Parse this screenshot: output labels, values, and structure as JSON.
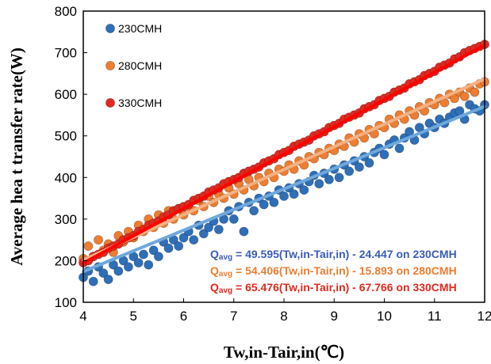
{
  "chart_data": {
    "type": "scatter",
    "xlabel": "Tw,in-Tair,in(℃)",
    "ylabel": "Average hea t transfer rate(W)",
    "xlim": [
      4,
      12
    ],
    "ylim": [
      100,
      800
    ],
    "xticks": [
      "4",
      "5",
      "6",
      "7",
      "8",
      "9",
      "10",
      "11",
      "12"
    ],
    "yticks": [
      "100",
      "200",
      "300",
      "400",
      "500",
      "600",
      "700",
      "800"
    ],
    "grid": false,
    "legend_position": "top-left",
    "series": [
      {
        "name": "230CMH",
        "color": "#2e6fb7",
        "trend_color": "#6fa8dc",
        "fit": {
          "slope": 49.595,
          "intercept": -24.447
        },
        "points": [
          [
            4.0,
            160
          ],
          [
            4.1,
            175
          ],
          [
            4.2,
            150
          ],
          [
            4.3,
            185
          ],
          [
            4.4,
            170
          ],
          [
            4.5,
            155
          ],
          [
            4.6,
            190
          ],
          [
            4.7,
            175
          ],
          [
            4.8,
            200
          ],
          [
            4.9,
            185
          ],
          [
            5.0,
            210
          ],
          [
            5.1,
            195
          ],
          [
            5.2,
            215
          ],
          [
            5.3,
            190
          ],
          [
            5.4,
            225
          ],
          [
            5.5,
            210
          ],
          [
            5.6,
            245
          ],
          [
            5.7,
            230
          ],
          [
            5.8,
            250
          ],
          [
            5.9,
            235
          ],
          [
            6.0,
            255
          ],
          [
            6.1,
            270
          ],
          [
            6.2,
            250
          ],
          [
            6.3,
            285
          ],
          [
            6.4,
            265
          ],
          [
            6.5,
            280
          ],
          [
            6.6,
            295
          ],
          [
            6.7,
            275
          ],
          [
            6.8,
            300
          ],
          [
            6.9,
            320
          ],
          [
            7.0,
            300
          ],
          [
            7.1,
            330
          ],
          [
            7.2,
            270
          ],
          [
            7.3,
            340
          ],
          [
            7.4,
            320
          ],
          [
            7.5,
            350
          ],
          [
            7.6,
            335
          ],
          [
            7.7,
            355
          ],
          [
            7.8,
            340
          ],
          [
            7.9,
            370
          ],
          [
            8.0,
            355
          ],
          [
            8.1,
            375
          ],
          [
            8.2,
            360
          ],
          [
            8.3,
            385
          ],
          [
            8.4,
            370
          ],
          [
            8.5,
            390
          ],
          [
            8.6,
            405
          ],
          [
            8.7,
            385
          ],
          [
            8.8,
            410
          ],
          [
            8.9,
            395
          ],
          [
            9.0,
            420
          ],
          [
            9.1,
            400
          ],
          [
            9.2,
            430
          ],
          [
            9.3,
            415
          ],
          [
            9.4,
            440
          ],
          [
            9.5,
            425
          ],
          [
            9.6,
            450
          ],
          [
            9.7,
            435
          ],
          [
            9.8,
            460
          ],
          [
            9.9,
            470
          ],
          [
            10.0,
            455
          ],
          [
            10.1,
            480
          ],
          [
            10.2,
            490
          ],
          [
            10.3,
            470
          ],
          [
            10.4,
            495
          ],
          [
            10.5,
            510
          ],
          [
            10.6,
            490
          ],
          [
            10.7,
            520
          ],
          [
            10.8,
            505
          ],
          [
            10.9,
            530
          ],
          [
            11.0,
            520
          ],
          [
            11.1,
            540
          ],
          [
            11.2,
            530
          ],
          [
            11.3,
            545
          ],
          [
            11.4,
            555
          ],
          [
            11.5,
            560
          ],
          [
            11.6,
            540
          ],
          [
            11.7,
            575
          ],
          [
            11.8,
            565
          ],
          [
            11.9,
            560
          ],
          [
            12.0,
            575
          ]
        ]
      },
      {
        "name": "280CMH",
        "color": "#ed7d31",
        "trend_color": "#f4b183",
        "fit": {
          "slope": 54.406,
          "intercept": -15.893
        },
        "points": [
          [
            4.0,
            205
          ],
          [
            4.1,
            235
          ],
          [
            4.2,
            210
          ],
          [
            4.3,
            250
          ],
          [
            4.4,
            225
          ],
          [
            4.5,
            240
          ],
          [
            4.6,
            220
          ],
          [
            4.7,
            260
          ],
          [
            4.8,
            245
          ],
          [
            4.9,
            270
          ],
          [
            5.0,
            255
          ],
          [
            5.1,
            285
          ],
          [
            5.2,
            270
          ],
          [
            5.3,
            300
          ],
          [
            5.4,
            280
          ],
          [
            5.5,
            310
          ],
          [
            5.6,
            290
          ],
          [
            5.7,
            320
          ],
          [
            5.8,
            300
          ],
          [
            5.9,
            325
          ],
          [
            6.0,
            310
          ],
          [
            6.1,
            330
          ],
          [
            6.2,
            320
          ],
          [
            6.3,
            345
          ],
          [
            6.4,
            330
          ],
          [
            6.5,
            355
          ],
          [
            6.6,
            340
          ],
          [
            6.7,
            360
          ],
          [
            6.8,
            350
          ],
          [
            6.9,
            375
          ],
          [
            7.0,
            360
          ],
          [
            7.1,
            385
          ],
          [
            7.2,
            370
          ],
          [
            7.3,
            395
          ],
          [
            7.4,
            380
          ],
          [
            7.5,
            400
          ],
          [
            7.6,
            390
          ],
          [
            7.7,
            410
          ],
          [
            7.8,
            400
          ],
          [
            7.9,
            420
          ],
          [
            8.0,
            415
          ],
          [
            8.1,
            430
          ],
          [
            8.2,
            420
          ],
          [
            8.3,
            440
          ],
          [
            8.4,
            430
          ],
          [
            8.5,
            450
          ],
          [
            8.6,
            445
          ],
          [
            8.7,
            460
          ],
          [
            8.8,
            455
          ],
          [
            8.9,
            470
          ],
          [
            9.0,
            465
          ],
          [
            9.1,
            480
          ],
          [
            9.2,
            475
          ],
          [
            9.3,
            495
          ],
          [
            9.4,
            485
          ],
          [
            9.5,
            505
          ],
          [
            9.6,
            495
          ],
          [
            9.7,
            515
          ],
          [
            9.8,
            505
          ],
          [
            9.9,
            525
          ],
          [
            10.0,
            520
          ],
          [
            10.1,
            540
          ],
          [
            10.2,
            530
          ],
          [
            10.3,
            550
          ],
          [
            10.4,
            540
          ],
          [
            10.5,
            560
          ],
          [
            10.6,
            550
          ],
          [
            10.7,
            570
          ],
          [
            10.8,
            560
          ],
          [
            10.9,
            580
          ],
          [
            11.0,
            575
          ],
          [
            11.1,
            590
          ],
          [
            11.2,
            580
          ],
          [
            11.3,
            600
          ],
          [
            11.4,
            590
          ],
          [
            11.5,
            605
          ],
          [
            11.6,
            595
          ],
          [
            11.7,
            615
          ],
          [
            11.8,
            605
          ],
          [
            11.9,
            625
          ],
          [
            12.0,
            630
          ]
        ]
      },
      {
        "name": "330CMH",
        "color": "#e0291f",
        "trend_color": "#ff0000",
        "fit": {
          "slope": 65.476,
          "intercept": -67.766
        },
        "points": [
          [
            4.0,
            195
          ],
          [
            4.1,
            200
          ],
          [
            4.2,
            210
          ],
          [
            4.3,
            215
          ],
          [
            4.4,
            220
          ],
          [
            4.5,
            230
          ],
          [
            4.6,
            235
          ],
          [
            4.7,
            240
          ],
          [
            4.8,
            250
          ],
          [
            4.9,
            255
          ],
          [
            5.0,
            260
          ],
          [
            5.1,
            270
          ],
          [
            5.2,
            275
          ],
          [
            5.3,
            285
          ],
          [
            5.4,
            290
          ],
          [
            5.5,
            295
          ],
          [
            5.6,
            305
          ],
          [
            5.7,
            310
          ],
          [
            5.8,
            320
          ],
          [
            5.9,
            325
          ],
          [
            6.0,
            330
          ],
          [
            6.1,
            335
          ],
          [
            6.2,
            345
          ],
          [
            6.3,
            350
          ],
          [
            6.4,
            355
          ],
          [
            6.5,
            365
          ],
          [
            6.6,
            370
          ],
          [
            6.7,
            375
          ],
          [
            6.8,
            385
          ],
          [
            6.9,
            390
          ],
          [
            7.0,
            395
          ],
          [
            7.1,
            400
          ],
          [
            7.2,
            410
          ],
          [
            7.3,
            415
          ],
          [
            7.4,
            420
          ],
          [
            7.5,
            425
          ],
          [
            7.6,
            435
          ],
          [
            7.7,
            440
          ],
          [
            7.8,
            445
          ],
          [
            7.9,
            455
          ],
          [
            8.0,
            460
          ],
          [
            8.1,
            465
          ],
          [
            8.2,
            475
          ],
          [
            8.3,
            480
          ],
          [
            8.4,
            485
          ],
          [
            8.5,
            490
          ],
          [
            8.6,
            500
          ],
          [
            8.7,
            505
          ],
          [
            8.8,
            510
          ],
          [
            8.9,
            520
          ],
          [
            9.0,
            525
          ],
          [
            9.1,
            530
          ],
          [
            9.2,
            540
          ],
          [
            9.3,
            545
          ],
          [
            9.4,
            550
          ],
          [
            9.5,
            555
          ],
          [
            9.6,
            565
          ],
          [
            9.7,
            570
          ],
          [
            9.8,
            575
          ],
          [
            9.9,
            585
          ],
          [
            10.0,
            590
          ],
          [
            10.1,
            595
          ],
          [
            10.2,
            605
          ],
          [
            10.3,
            610
          ],
          [
            10.4,
            615
          ],
          [
            10.5,
            625
          ],
          [
            10.6,
            630
          ],
          [
            10.7,
            635
          ],
          [
            10.8,
            645
          ],
          [
            10.9,
            650
          ],
          [
            11.0,
            655
          ],
          [
            11.1,
            665
          ],
          [
            11.2,
            670
          ],
          [
            11.3,
            675
          ],
          [
            11.4,
            685
          ],
          [
            11.5,
            690
          ],
          [
            11.6,
            700
          ],
          [
            11.7,
            705
          ],
          [
            11.8,
            710
          ],
          [
            11.9,
            715
          ],
          [
            12.0,
            720
          ]
        ]
      }
    ],
    "annotations": [
      {
        "prefix": "Q",
        "sub": "avg",
        "text": " = 49.595(Tw,in-Tair,in) - 24.447 on 230CMH",
        "color": "#3a5bb8"
      },
      {
        "prefix": "Q",
        "sub": "avg",
        "text": " = 54.406(Tw,in-Tair,in) - 15.893 on 280CMH",
        "color": "#ed7d31"
      },
      {
        "prefix": "Q",
        "sub": "avg",
        "text": " = 65.476(Tw,in-Tair,in) - 67.766 on 330CMH",
        "color": "#e0291f"
      }
    ]
  }
}
